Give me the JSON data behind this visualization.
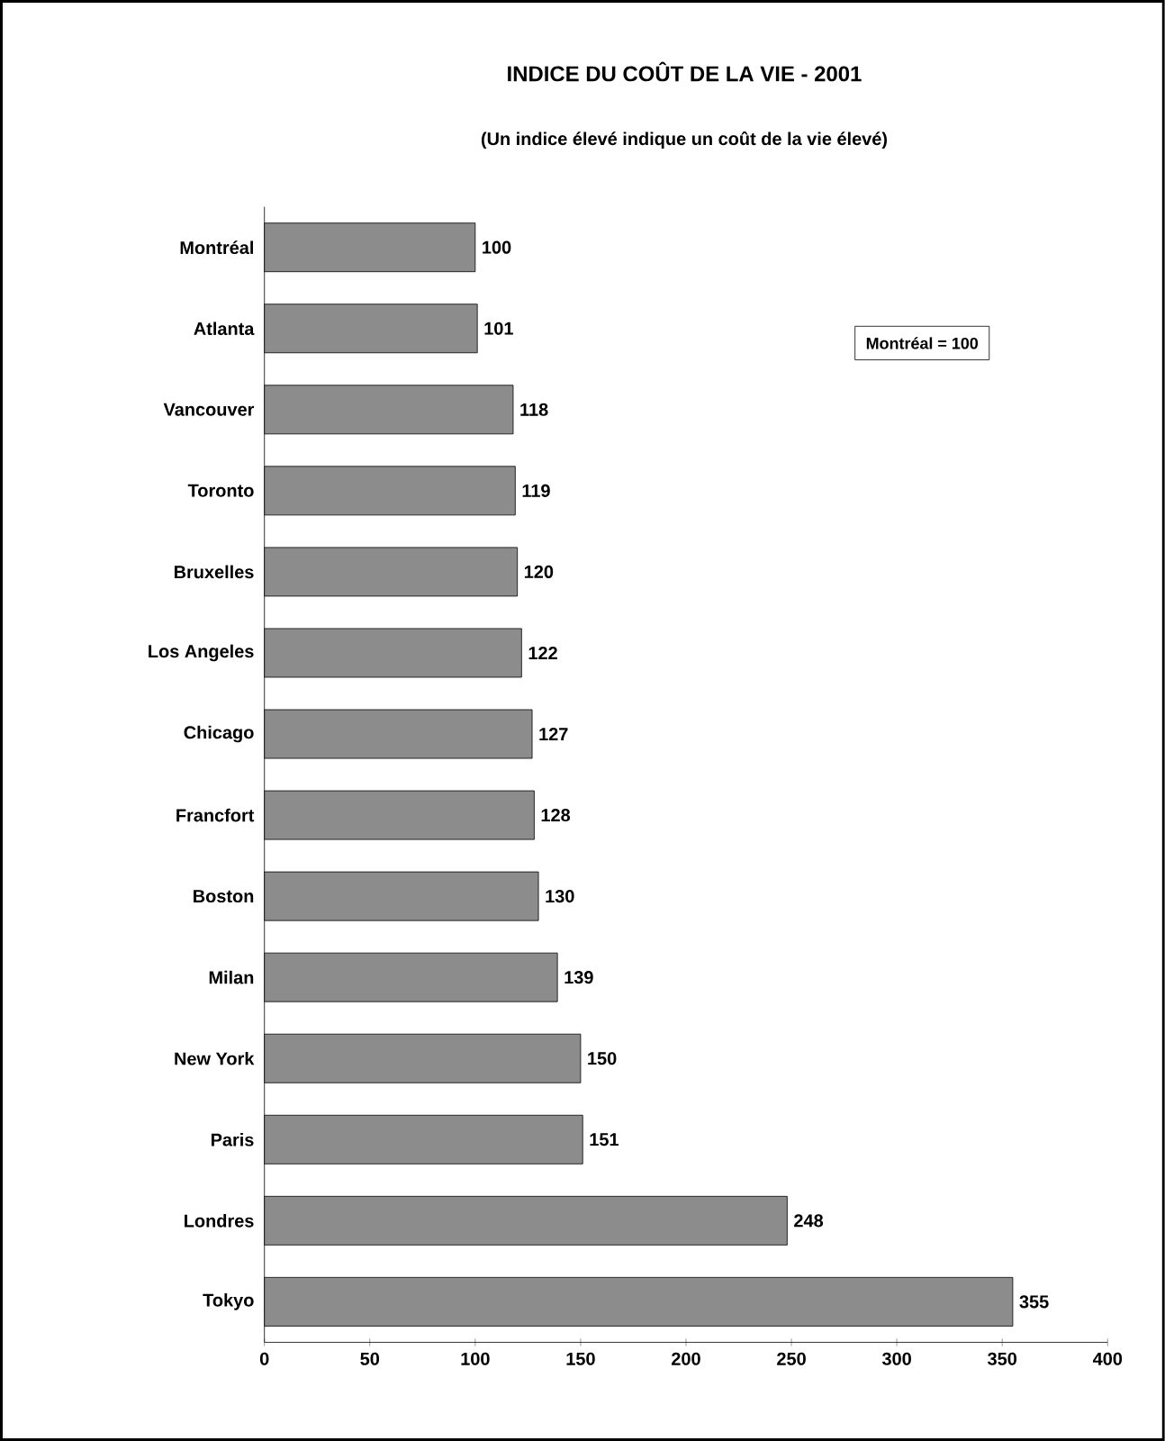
{
  "chart_data": {
    "type": "bar",
    "orientation": "horizontal",
    "title": "INDICE DU COÛT DE LA VIE - 2001",
    "subtitle": "(Un indice élevé indique un coût de la vie élevé)",
    "categories": [
      "Montréal",
      "Atlanta",
      "Vancouver",
      "Toronto",
      "Bruxelles",
      "Los Angeles",
      "Chicago",
      "Francfort",
      "Boston",
      "Milan",
      "New York",
      "Paris",
      "Londres",
      "Tokyo"
    ],
    "values": [
      100,
      101,
      118,
      119,
      120,
      122,
      127,
      128,
      130,
      139,
      150,
      151,
      248,
      355
    ],
    "color": "#8c8c8c",
    "xlim": [
      0,
      400
    ],
    "xticks": [
      0,
      50,
      100,
      150,
      200,
      250,
      300,
      350,
      400
    ],
    "data_labels": true,
    "grid": false,
    "annotations": [
      "Montréal = 100"
    ]
  }
}
